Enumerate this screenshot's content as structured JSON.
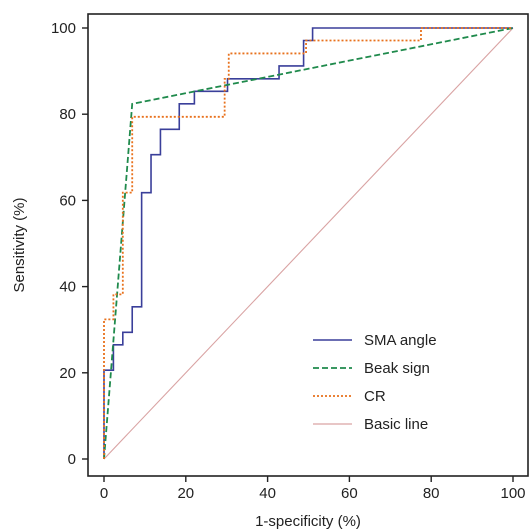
{
  "chart_data": {
    "type": "line",
    "title": "",
    "xlabel": "1-specificity (%)",
    "ylabel": "Sensitivity (%)",
    "xlim": [
      0,
      100
    ],
    "ylim": [
      0,
      100
    ],
    "xticks": [
      0,
      20,
      40,
      60,
      80,
      100
    ],
    "yticks": [
      0,
      20,
      40,
      60,
      80,
      100
    ],
    "grid": false,
    "legend_position": "bottom-right",
    "series": [
      {
        "name": "SMA angle",
        "color": "#3a3f9a",
        "style": "solid",
        "points": [
          [
            0,
            0
          ],
          [
            0,
            20.6
          ],
          [
            2.3,
            20.6
          ],
          [
            2.3,
            26.5
          ],
          [
            4.6,
            26.5
          ],
          [
            4.6,
            29.4
          ],
          [
            6.9,
            29.4
          ],
          [
            6.9,
            35.3
          ],
          [
            9.2,
            35.3
          ],
          [
            9.2,
            61.8
          ],
          [
            11.5,
            61.8
          ],
          [
            11.5,
            70.6
          ],
          [
            13.8,
            70.6
          ],
          [
            13.8,
            76.5
          ],
          [
            18.4,
            76.5
          ],
          [
            18.4,
            82.4
          ],
          [
            22.1,
            82.4
          ],
          [
            22.1,
            85.3
          ],
          [
            30.2,
            85.3
          ],
          [
            30.2,
            88.2
          ],
          [
            42.8,
            88.2
          ],
          [
            42.8,
            91.2
          ],
          [
            48.8,
            91.2
          ],
          [
            48.8,
            97.1
          ],
          [
            51,
            97.1
          ],
          [
            51,
            100
          ],
          [
            100,
            100
          ]
        ]
      },
      {
        "name": "Beak sign",
        "color": "#1f8a4c",
        "style": "dashed",
        "points": [
          [
            0,
            0
          ],
          [
            6.9,
            82.4
          ],
          [
            100,
            100
          ]
        ]
      },
      {
        "name": "CR",
        "color": "#e8711c",
        "style": "dotted",
        "points": [
          [
            0,
            0
          ],
          [
            0,
            32.4
          ],
          [
            2.3,
            32.4
          ],
          [
            2.3,
            38.2
          ],
          [
            4.6,
            38.2
          ],
          [
            4.6,
            61.8
          ],
          [
            6.9,
            61.8
          ],
          [
            6.9,
            79.4
          ],
          [
            11.5,
            79.4
          ],
          [
            11.5,
            79.4
          ],
          [
            29.5,
            79.4
          ],
          [
            29.5,
            88.2
          ],
          [
            30.5,
            88.2
          ],
          [
            30.5,
            94.1
          ],
          [
            49.4,
            94.1
          ],
          [
            49.4,
            97.1
          ],
          [
            77.5,
            97.1
          ],
          [
            77.5,
            100
          ],
          [
            100,
            100
          ]
        ]
      },
      {
        "name": "Basic line",
        "color": "#d9a3a3",
        "style": "solid",
        "points": [
          [
            0,
            0
          ],
          [
            100,
            100
          ]
        ]
      }
    ]
  }
}
